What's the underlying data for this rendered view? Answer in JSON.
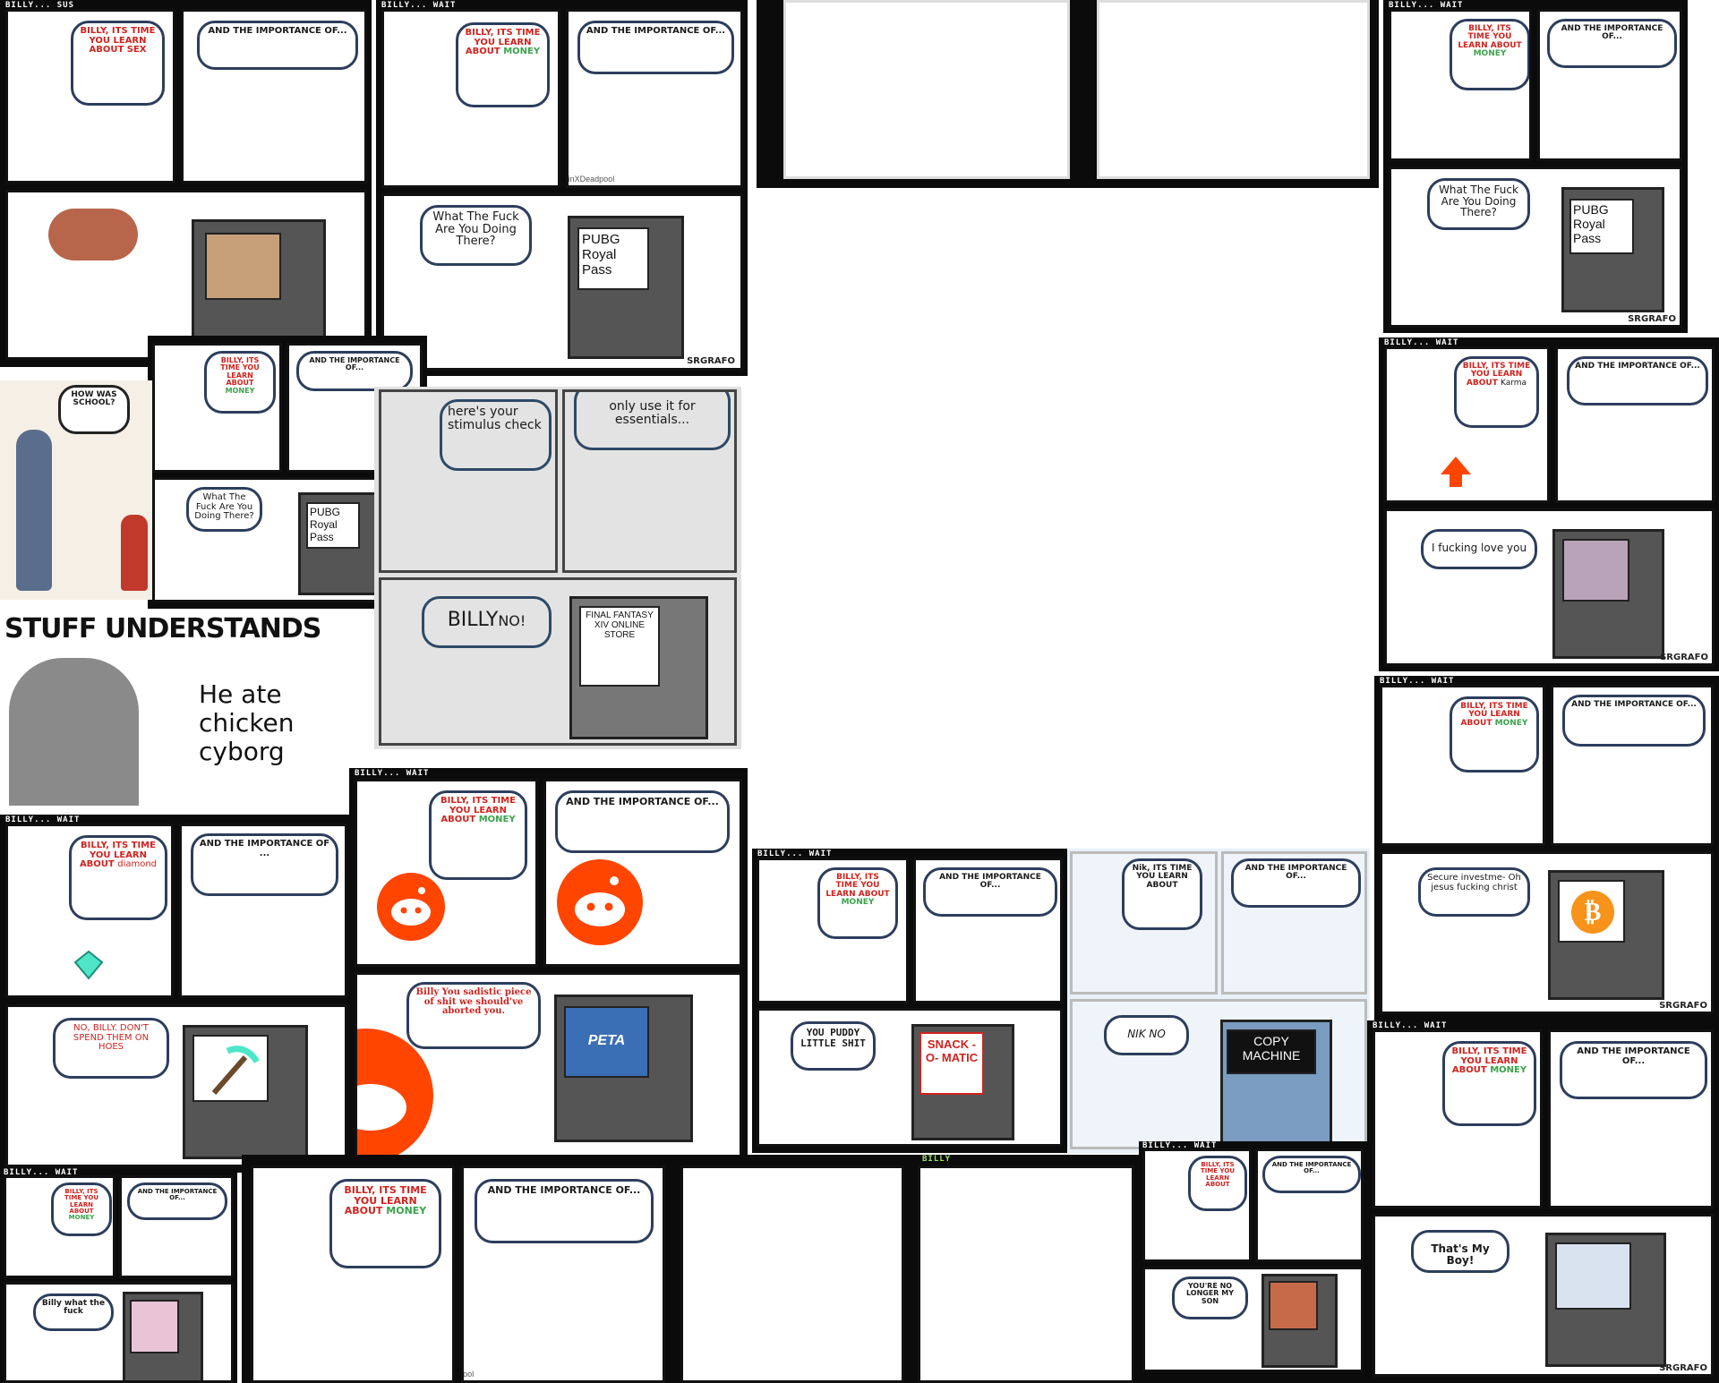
{
  "colors": {
    "accent_red": "#d0231e",
    "money_green": "#3aa34a",
    "bubble_border": "#2d3e5c",
    "reddit_orange": "#ff4500",
    "bitcoin_orange": "#f7931a",
    "machine_grey": "#555555",
    "border_black": "#0b0b0b",
    "background": "#ffffff"
  },
  "icons": [
    "money-bill-icon",
    "reddit-logo-icon",
    "bitcoin-logo-icon",
    "diamond-icon",
    "pickaxe-icon",
    "upvote-arrow-icon",
    "peta-logo-icon"
  ],
  "billy": {
    "intro": "BILLY, ITS TIME YOU LEARN ABOUT",
    "importance": "AND THE IMPORTANCE OF...",
    "importance_alt": "AND THE IMPORTANCE OF ...",
    "money": "MONEY",
    "sex": "SEX",
    "karma": "Karma",
    "diamond": "diamond",
    "nik_intro": "Nik, ITS TIME YOU LEARN ABOUT",
    "tag_sus": "BILLY... SUS",
    "tag_wait": "BILLY... WAIT",
    "tag_billy": "BILLY",
    "credit": "SRGRAFO",
    "watermark": "@SachinXDeadpool"
  },
  "punchlines": {
    "wtf_there": "What The Fuck Are You Doing There?",
    "pubg": "PUBG Royal Pass",
    "stimulus": "here's your stimulus check",
    "essentials": "only use it for essentials...",
    "billy_no_a": "BILLY",
    "billy_no_b": "NO!",
    "ff_store": "FINAL FANTASY XIV ONLINE STORE",
    "love_you": "I fucking love you",
    "secure": "Secure investme- Oh jesus fucking christ",
    "no_billy": "NO, BILLY. DON'T SPEND THEM ON HOES",
    "sadistic": "Billy You sadistic piece of shit we should've aborted you.",
    "peta": "PETA",
    "puddy": "YOU PUDDY LITTLE SHIT",
    "snack": "SNACK -O- MATIC",
    "nik_no": "NIK NO",
    "copy": "COPY MACHINE",
    "billy_wtf": "Billy what the fuck",
    "no_longer": "YOU'RE NO LONGER MY SON",
    "my_boy": "That's My Boy!"
  },
  "school": {
    "question": "HOW WAS SCHOOL?"
  },
  "stuff": {
    "headline": "STUFF UNDERSTANDS",
    "caption": "He ate chicken cyborg"
  }
}
